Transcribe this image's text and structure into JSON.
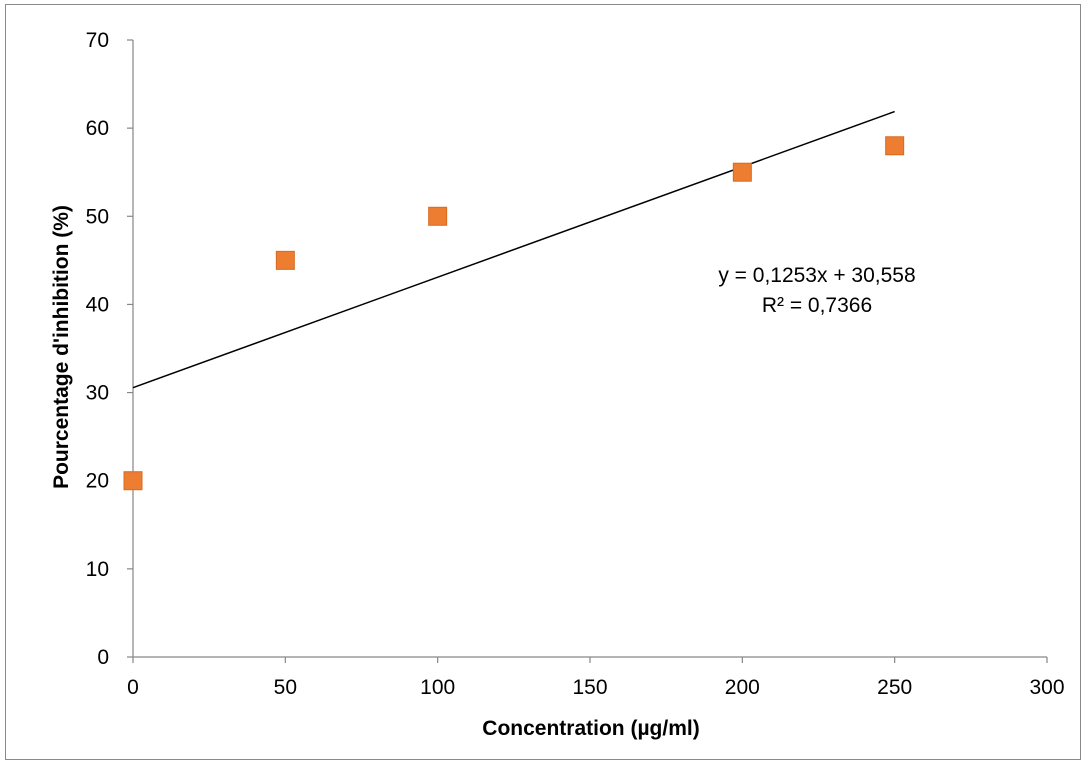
{
  "chart_data": {
    "type": "scatter",
    "xlabel": "Concentration (µg/ml)",
    "ylabel": "Pourcentage d'inhibition (%)",
    "xlim": [
      0,
      300
    ],
    "ylim": [
      0,
      70
    ],
    "x_ticks": [
      0,
      50,
      100,
      150,
      200,
      250,
      300
    ],
    "y_ticks": [
      0,
      10,
      20,
      30,
      40,
      50,
      60,
      70
    ],
    "grid": false,
    "series": [
      {
        "color": "#ED7D31",
        "marker": "square",
        "points": [
          {
            "x": 0,
            "y": 20
          },
          {
            "x": 50,
            "y": 45
          },
          {
            "x": 100,
            "y": 50
          },
          {
            "x": 200,
            "y": 55
          },
          {
            "x": 250,
            "y": 58
          }
        ]
      }
    ],
    "trendline": {
      "type": "linear",
      "slope": 0.1253,
      "intercept": 30.558,
      "x_range": [
        0,
        250
      ],
      "color": "#000000",
      "equation_text": "y = 0,1253x + 30,558",
      "r2_text": "R² = 0,7366"
    }
  }
}
